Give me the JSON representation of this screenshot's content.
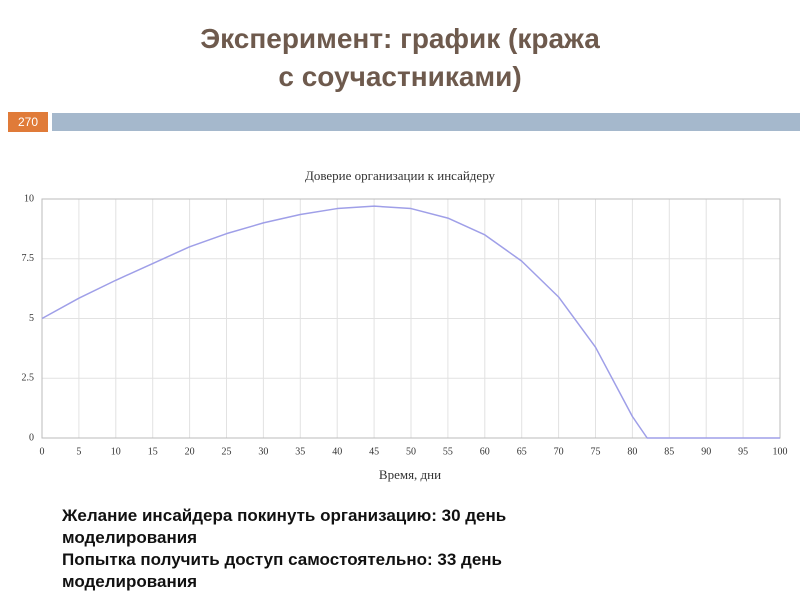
{
  "title_lines": [
    "Эксперимент: график (кража",
    "с соучастниками)"
  ],
  "page_number": "270",
  "chart_data": {
    "type": "line",
    "title": "Доверие организации к инсайдеру",
    "x_label": "Время, дни",
    "x": [
      0,
      5,
      10,
      15,
      20,
      25,
      30,
      35,
      40,
      45,
      50,
      55,
      60,
      65,
      70,
      75,
      80,
      82,
      85,
      90,
      95,
      100
    ],
    "values": [
      5,
      5.85,
      6.6,
      7.3,
      8.0,
      8.55,
      9.0,
      9.35,
      9.6,
      9.7,
      9.6,
      9.2,
      8.5,
      7.4,
      5.9,
      3.8,
      0.9,
      0,
      0,
      0,
      0,
      0
    ],
    "color": "#9f9fe8",
    "xlim": [
      0,
      100
    ],
    "xticks": [
      0,
      5,
      10,
      15,
      20,
      25,
      30,
      35,
      40,
      45,
      50,
      55,
      60,
      65,
      70,
      75,
      80,
      85,
      90,
      95,
      100
    ],
    "ylim": [
      0,
      10
    ],
    "yticks": [
      0,
      2.5,
      5,
      7.5,
      10
    ],
    "grid": true
  },
  "notes": [
    "Желание инсайдера покинуть организацию: 30 день моделирования",
    "Попытка получить доступ самостоятельно: 33 день моделирования"
  ]
}
